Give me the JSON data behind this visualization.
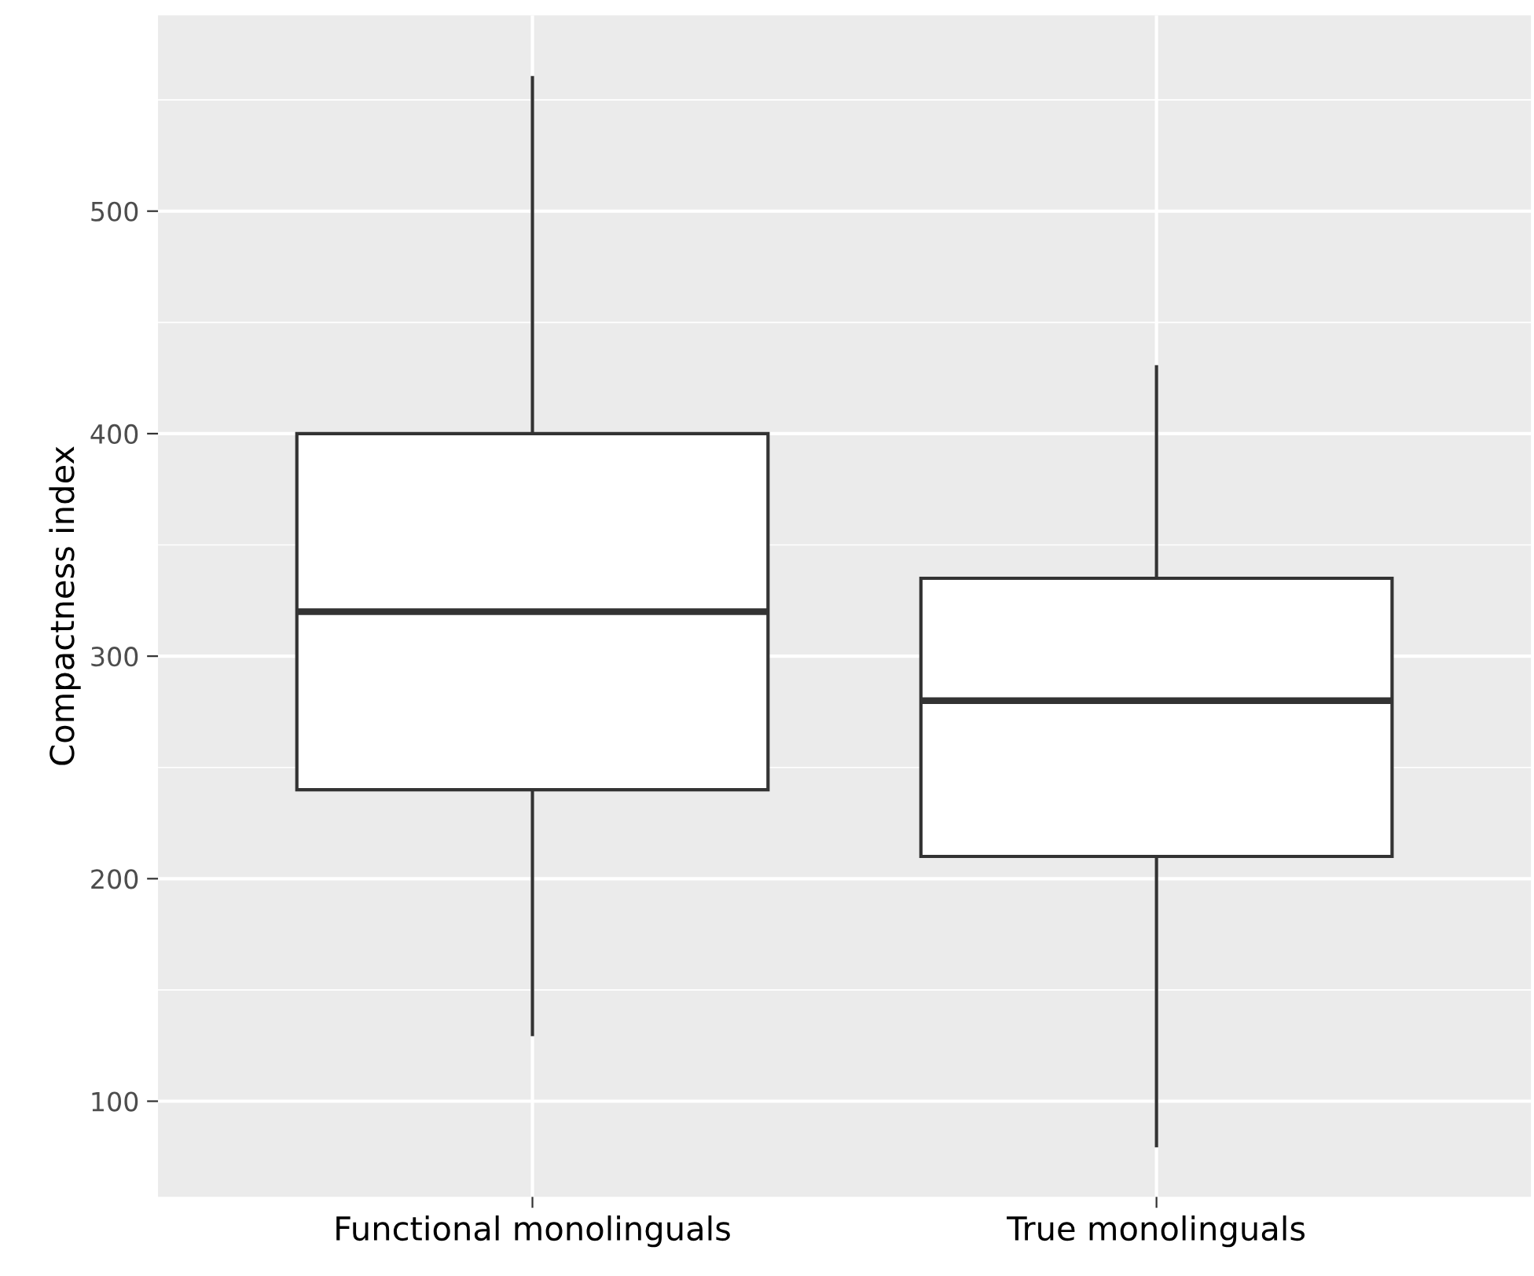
{
  "chart_data": {
    "type": "box",
    "ylabel": "Compactness index",
    "categories": [
      "Functional monolinguals",
      "True monolinguals"
    ],
    "boxes": [
      {
        "low": 130,
        "q1": 240,
        "median": 320,
        "q3": 400,
        "high": 560
      },
      {
        "low": 80,
        "q1": 210,
        "median": 280,
        "q3": 335,
        "high": 430
      }
    ],
    "ylim": [
      57,
      588
    ],
    "yticks": [
      100,
      200,
      300,
      400,
      500
    ],
    "grid": true
  }
}
